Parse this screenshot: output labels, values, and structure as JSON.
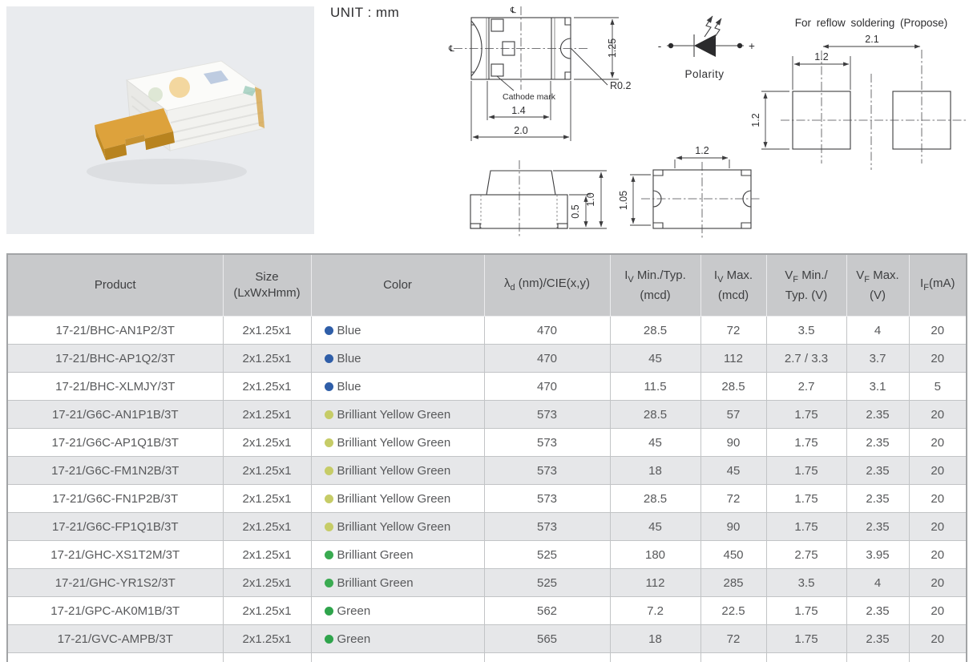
{
  "unit_label": "UNIT : mm",
  "colors": {
    "blue": "#2f5ea8",
    "yellow_green": "#c6cc67",
    "brilliant_green": "#3aab51",
    "green": "#2fa44c"
  },
  "drawings": {
    "top_view": {
      "cl_symbol": "℄",
      "cathode_label": "Cathode mark",
      "dim_width": "2.0",
      "dim_inner": "1.4",
      "dim_height": "1.25",
      "dim_radius": "R0.2"
    },
    "polarity": {
      "label": "Polarity",
      "minus": "-",
      "plus": "+"
    },
    "reflow": {
      "title": "For reflow soldering (Propose)",
      "dim_pitch": "2.1",
      "dim_pad_width": "1.2",
      "dim_pad_height": "1.2"
    },
    "side_view": {
      "dim_base_height": "0.5",
      "dim_total_height": "1.0"
    },
    "end_view": {
      "dim_width": "1.2",
      "dim_height": "1.05"
    }
  },
  "table": {
    "columns": {
      "product": {
        "label": "Product"
      },
      "size": {
        "l1": "Size",
        "l2": "(LxWxHmm)"
      },
      "color": {
        "label": "Color"
      },
      "lambda": {
        "sym": "λ",
        "sub": "d",
        "rest": " (nm)/CIE(x,y)"
      },
      "iv_min": {
        "sym": "I",
        "sub": "V",
        "rest": " Min./Typ.",
        "l2": "(mcd)"
      },
      "iv_max": {
        "sym": "I",
        "sub": "V",
        "rest": " Max.",
        "l2": "(mcd)"
      },
      "vf_min": {
        "sym": "V",
        "sub": "F",
        "rest": " Min./",
        "l2": "Typ. (V)"
      },
      "vf_max": {
        "sym": "V",
        "sub": "F",
        "rest": " Max.",
        "l2": "(V)"
      },
      "if": {
        "sym": "I",
        "sub": "F",
        "rest": "(mA)"
      }
    },
    "rows": [
      {
        "product": "17-21/BHC-AN1P2/3T",
        "size": "2x1.25x1",
        "color": "Blue",
        "dot": "blue",
        "lambda": "470",
        "iv_min": "28.5",
        "iv_max": "72",
        "vf_min": "3.5",
        "vf_max": "4",
        "if_ma": "20"
      },
      {
        "product": "17-21/BHC-AP1Q2/3T",
        "size": "2x1.25x1",
        "color": "Blue",
        "dot": "blue",
        "lambda": "470",
        "iv_min": "45",
        "iv_max": "112",
        "vf_min": "2.7 / 3.3",
        "vf_max": "3.7",
        "if_ma": "20"
      },
      {
        "product": "17-21/BHC-XLMJY/3T",
        "size": "2x1.25x1",
        "color": "Blue",
        "dot": "blue",
        "lambda": "470",
        "iv_min": "11.5",
        "iv_max": "28.5",
        "vf_min": "2.7",
        "vf_max": "3.1",
        "if_ma": "5"
      },
      {
        "product": "17-21/G6C-AN1P1B/3T",
        "size": "2x1.25x1",
        "color": "Brilliant Yellow Green",
        "dot": "yellow_green",
        "lambda": "573",
        "iv_min": "28.5",
        "iv_max": "57",
        "vf_min": "1.75",
        "vf_max": "2.35",
        "if_ma": "20"
      },
      {
        "product": "17-21/G6C-AP1Q1B/3T",
        "size": "2x1.25x1",
        "color": "Brilliant Yellow Green",
        "dot": "yellow_green",
        "lambda": "573",
        "iv_min": "45",
        "iv_max": "90",
        "vf_min": "1.75",
        "vf_max": "2.35",
        "if_ma": "20"
      },
      {
        "product": "17-21/G6C-FM1N2B/3T",
        "size": "2x1.25x1",
        "color": "Brilliant Yellow Green",
        "dot": "yellow_green",
        "lambda": "573",
        "iv_min": "18",
        "iv_max": "45",
        "vf_min": "1.75",
        "vf_max": "2.35",
        "if_ma": "20"
      },
      {
        "product": "17-21/G6C-FN1P2B/3T",
        "size": "2x1.25x1",
        "color": "Brilliant Yellow Green",
        "dot": "yellow_green",
        "lambda": "573",
        "iv_min": "28.5",
        "iv_max": "72",
        "vf_min": "1.75",
        "vf_max": "2.35",
        "if_ma": "20"
      },
      {
        "product": "17-21/G6C-FP1Q1B/3T",
        "size": "2x1.25x1",
        "color": "Brilliant Yellow Green",
        "dot": "yellow_green",
        "lambda": "573",
        "iv_min": "45",
        "iv_max": "90",
        "vf_min": "1.75",
        "vf_max": "2.35",
        "if_ma": "20"
      },
      {
        "product": "17-21/GHC-XS1T2M/3T",
        "size": "2x1.25x1",
        "color": "Brilliant Green",
        "dot": "brilliant_green",
        "lambda": "525",
        "iv_min": "180",
        "iv_max": "450",
        "vf_min": "2.75",
        "vf_max": "3.95",
        "if_ma": "20"
      },
      {
        "product": "17-21/GHC-YR1S2/3T",
        "size": "2x1.25x1",
        "color": "Brilliant Green",
        "dot": "brilliant_green",
        "lambda": "525",
        "iv_min": "112",
        "iv_max": "285",
        "vf_min": "3.5",
        "vf_max": "4",
        "if_ma": "20"
      },
      {
        "product": "17-21/GPC-AK0M1B/3T",
        "size": "2x1.25x1",
        "color": "Green",
        "dot": "green",
        "lambda": "562",
        "iv_min": "7.2",
        "iv_max": "22.5",
        "vf_min": "1.75",
        "vf_max": "2.35",
        "if_ma": "20"
      },
      {
        "product": "17-21/GVC-AMPB/3T",
        "size": "2x1.25x1",
        "color": "Green",
        "dot": "green",
        "lambda": "565",
        "iv_min": "18",
        "iv_max": "72",
        "vf_min": "1.75",
        "vf_max": "2.35",
        "if_ma": "20"
      }
    ]
  }
}
